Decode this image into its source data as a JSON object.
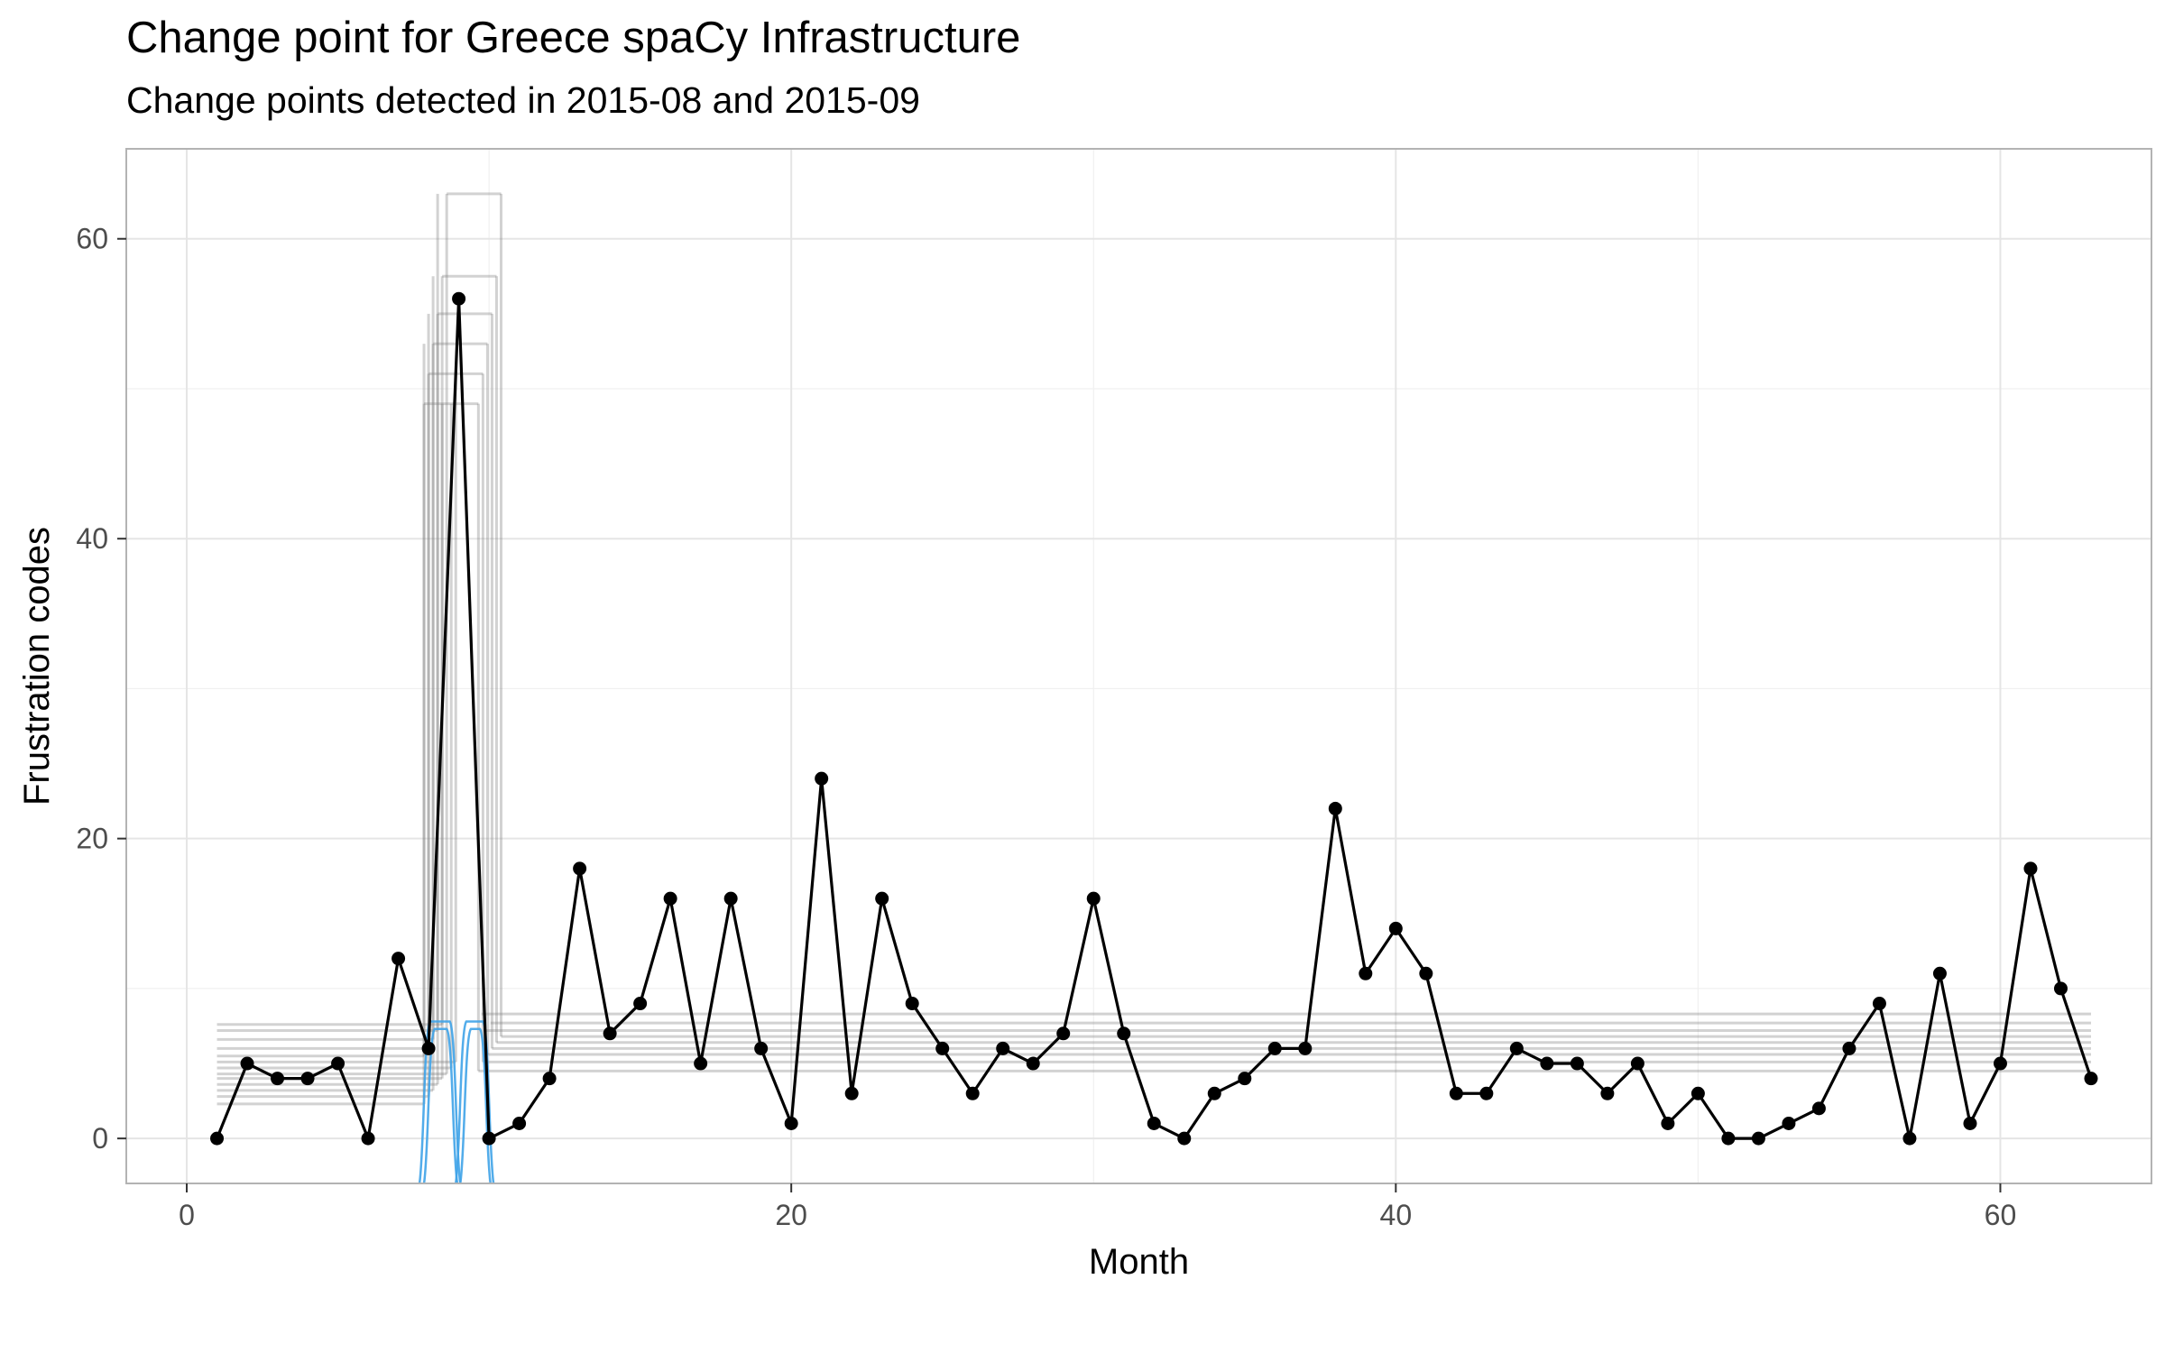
{
  "chart_data": {
    "type": "line",
    "title": "Change point for Greece spaCy Infrastructure",
    "subtitle": "Change points detected in 2015-08 and 2015-09",
    "xlabel": "Month",
    "ylabel": "Frustration codes",
    "xlim": [
      -2,
      65
    ],
    "ylim": [
      -3,
      66
    ],
    "x_ticks": [
      0,
      20,
      40,
      60
    ],
    "y_ticks": [
      0,
      20,
      40,
      60
    ],
    "grid": true,
    "legend": "none",
    "series": [
      {
        "x": [
          1,
          2,
          3,
          4,
          5,
          6,
          7,
          8,
          9,
          10,
          11,
          12,
          13,
          14,
          15,
          16,
          17,
          18,
          19,
          20,
          21,
          22,
          23,
          24,
          25,
          26,
          27,
          28,
          29,
          30,
          31,
          32,
          33,
          34,
          35,
          36,
          37,
          38,
          39,
          40,
          41,
          42,
          43,
          44,
          45,
          46,
          47,
          48,
          49,
          50,
          51,
          52,
          53,
          54,
          55,
          56,
          57,
          58,
          59,
          60,
          61,
          62,
          63
        ],
        "values": [
          0,
          5,
          4,
          4,
          5,
          0,
          12,
          6,
          56,
          0,
          1,
          4,
          18,
          7,
          9,
          16,
          5,
          16,
          6,
          1,
          24,
          3,
          16,
          9,
          6,
          3,
          6,
          5,
          7,
          16,
          7,
          1,
          0,
          3,
          4,
          6,
          6,
          22,
          11,
          14,
          11,
          3,
          3,
          6,
          5,
          5,
          3,
          5,
          1,
          3,
          0,
          0,
          1,
          2,
          6,
          9,
          0,
          11,
          1,
          5,
          18,
          10,
          4
        ]
      }
    ],
    "posterior_segments": {
      "before_levels": [
        2.3,
        2.8,
        3.2,
        3.6,
        4.0,
        4.3,
        4.7,
        5.1,
        5.5,
        6.0,
        6.6,
        7.2,
        7.6
      ],
      "peak_levels": [
        49,
        51,
        53,
        55,
        57.5,
        63
      ],
      "after_levels": [
        4.5,
        5.1,
        5.6,
        6.0,
        6.4,
        6.8,
        7.2,
        7.7,
        8.3
      ]
    },
    "colors": {
      "points": "#000000",
      "line": "#000000",
      "posterior": "#7f7f7f",
      "density": "#3fa3e8",
      "grid": "#e5e5e5",
      "panel_border": "#b3b3b3"
    }
  }
}
